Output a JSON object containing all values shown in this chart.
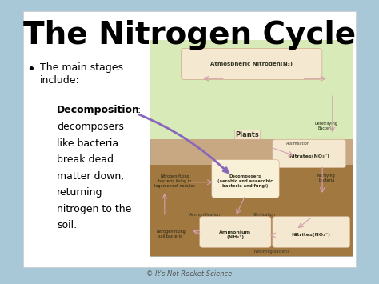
{
  "title": "The Nitrogen Cycle",
  "title_fontsize": 28,
  "title_fontweight": "bold",
  "bg_color": "#ffffff",
  "slide_bg": "#a8c8d8",
  "bullet_text": "The main stages\ninclude:",
  "sub_bullet_label": "Decomposition",
  "sub_bullet_body": [
    "decomposers",
    "like bacteria",
    "break dead",
    "matter down,",
    "returning",
    "nitrogen to the",
    "soil."
  ],
  "diagram_bg": "#c8a882",
  "diagram_sky_bg": "#d8eab8",
  "atm_text": "Atmospheric Nitrogen(N₂)",
  "plants_text": "Plants",
  "nitrates_text": "Nitrates(NO₃⁻)",
  "ammonium_text": "Ammonium\n(NH₄⁺)",
  "nitrites_text": "Nitrites(NO₂⁻)",
  "decomposers_text": "Decomposers\n(aerobic and anaerobic\nbacteria and fungi)",
  "n_fixing_root_text": "Nitrogen-fixing\nbacteria living in\nlegume root nodules",
  "n_fixing_soil_text": "Nitrogen-fixing\nsoil bacteria",
  "denitrifying_text": "Denitrifying\nBacteria",
  "nitrifying_bact_text": "Nitrifying\nbacteria",
  "ammonification_text": "Ammonification",
  "nitrification_text": "Nitrification",
  "nitrifying_bottom_text": "Nitrifying bacteria",
  "assimilation_text": "Assimilation",
  "copyright_text": "© It's Not Rocket Science",
  "arrow_color": "#d4a0b0",
  "purple_arrow_color": "#8866bb"
}
